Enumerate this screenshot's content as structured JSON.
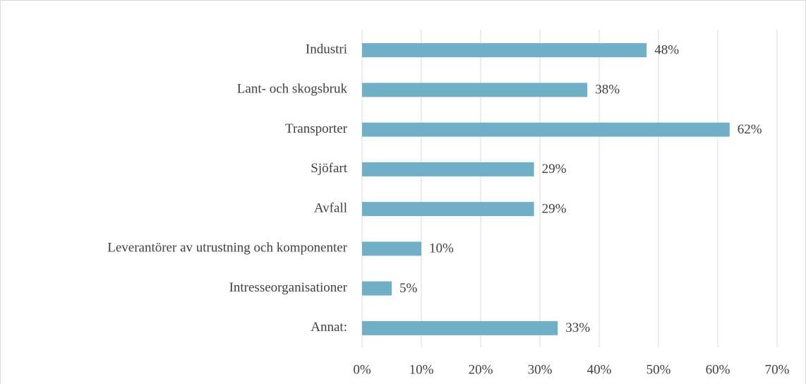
{
  "chart_data": {
    "type": "bar",
    "orientation": "horizontal",
    "categories": [
      "Industri",
      "Lant- och skogsbruk",
      "Transporter",
      "Sjöfart",
      "Avfall",
      "Leverantörer av utrustning och komponenter",
      "Intresseorganisationer",
      "Annat:"
    ],
    "values": [
      48,
      38,
      62,
      29,
      29,
      10,
      5,
      33
    ],
    "value_labels": [
      "48%",
      "38%",
      "62%",
      "29%",
      "29%",
      "10%",
      "5%",
      "33%"
    ],
    "color": "#71afc7",
    "xlim": [
      0,
      70
    ],
    "xticks": [
      {
        "value": 0,
        "label": "0%"
      },
      {
        "value": 10,
        "label": "10%"
      },
      {
        "value": 20,
        "label": "20%"
      },
      {
        "value": 30,
        "label": "30%"
      },
      {
        "value": 40,
        "label": "40%"
      },
      {
        "value": 50,
        "label": "50%"
      },
      {
        "value": 60,
        "label": "60%"
      },
      {
        "value": 70,
        "label": "70%"
      }
    ],
    "grid": true
  }
}
